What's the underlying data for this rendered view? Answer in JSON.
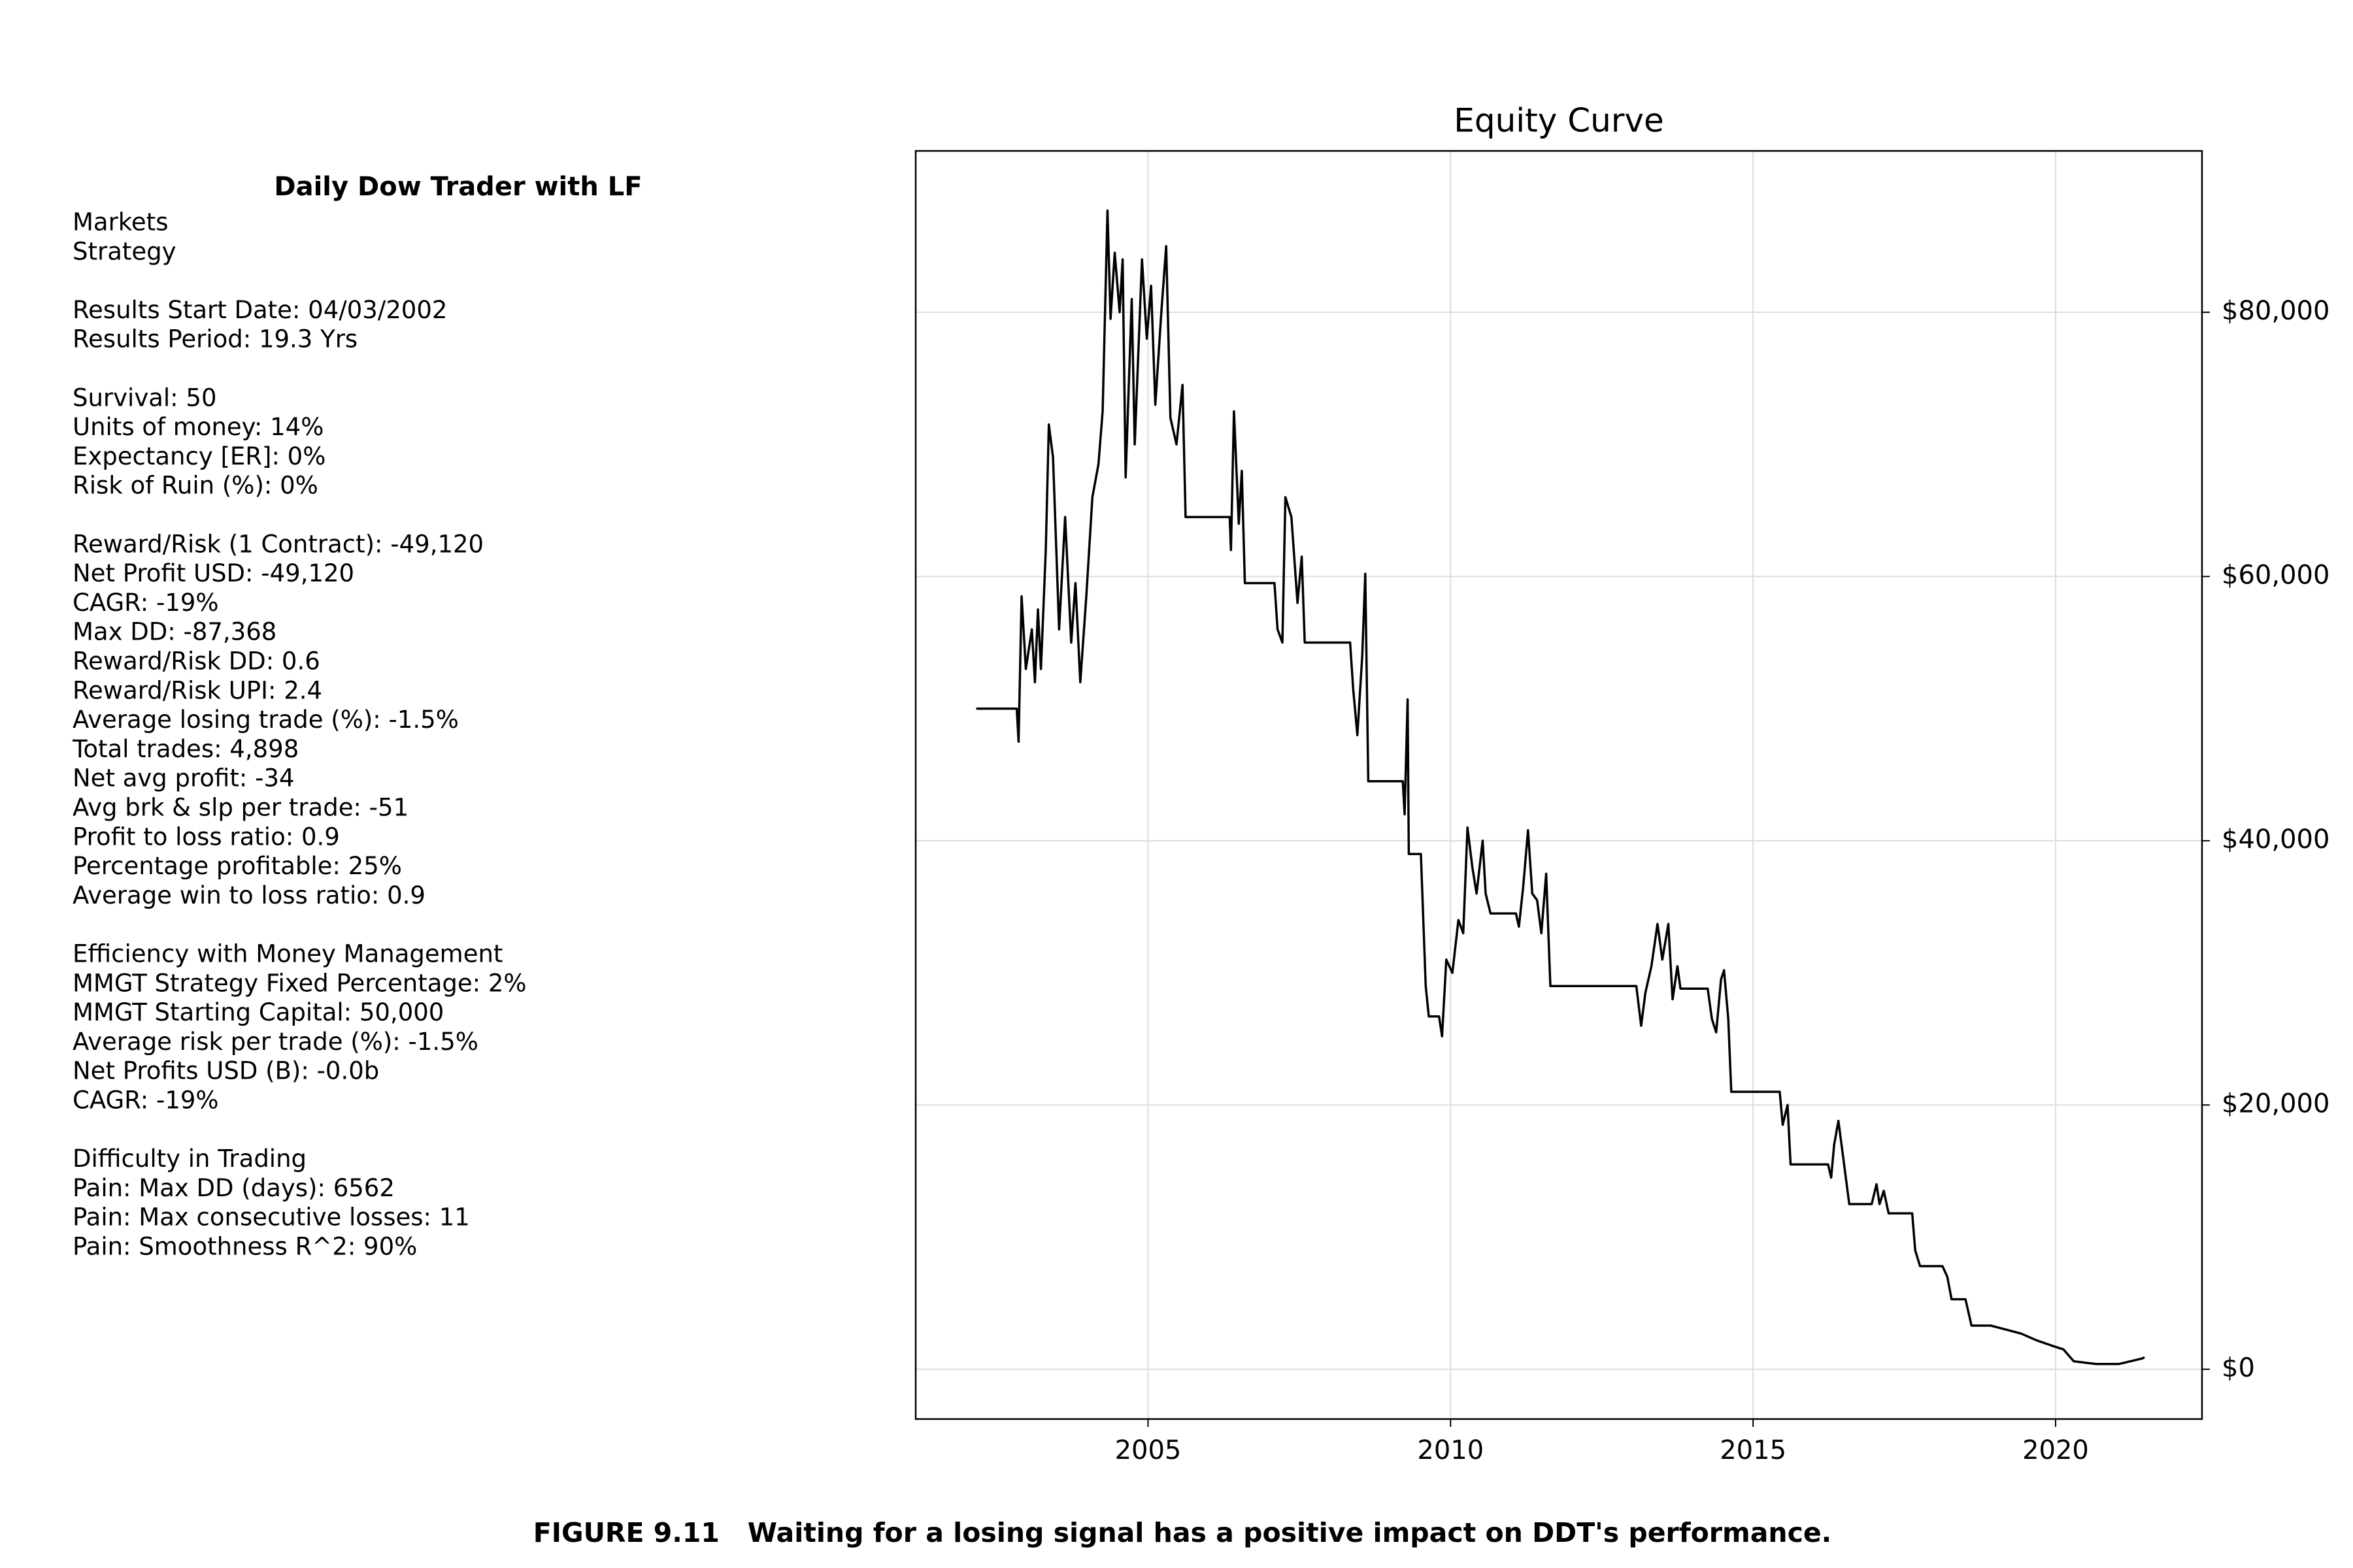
{
  "summary": {
    "title": "Daily Dow Trader with LF",
    "blocks": [
      [
        "Markets",
        "Strategy"
      ],
      [
        "Results Start Date: 04/03/2002",
        "Results Period: 19.3 Yrs"
      ],
      [
        "Survival: 50",
        "Units of money: 14%",
        "Expectancy [ER]: 0%",
        "Risk of Ruin (%): 0%"
      ],
      [
        "Reward/Risk (1 Contract): -49,120",
        "Net Profit USD: -49,120",
        "CAGR: -19%",
        "Max DD: -87,368",
        "Reward/Risk DD: 0.6",
        "Reward/Risk UPI: 2.4",
        "Average losing trade (%): -1.5%",
        "Total trades: 4,898",
        "Net avg profit: -34",
        "Avg brk & slp per trade: -51",
        "Profit to loss ratio: 0.9",
        "Percentage profitable: 25%",
        "Average win to loss ratio: 0.9"
      ],
      [
        "Efficiency with Money Management",
        "MMGT Strategy Fixed Percentage: 2%",
        "MMGT Starting Capital: 50,000",
        "Average risk per trade (%): -1.5%",
        "Net Profits USD (B): -0.0b",
        "CAGR: -19%"
      ],
      [
        "Difficulty in Trading",
        "Pain: Max DD (days): 6562",
        "Pain: Max consecutive losses: 11",
        "Pain: Smoothness R^2: 90%"
      ]
    ]
  },
  "chart_data": {
    "type": "line",
    "title": "Equity Curve",
    "color": "#000000",
    "grid": true,
    "y_axis_side": "right",
    "xlim": [
      2001.16,
      2022.42
    ],
    "xticks": [
      2005,
      2010,
      2015,
      2020
    ],
    "ylim": [
      -3770,
      92210
    ],
    "yticks": [
      {
        "value": 0,
        "label": "$0"
      },
      {
        "value": 20000,
        "label": "$20,000"
      },
      {
        "value": 40000,
        "label": "$40,000"
      },
      {
        "value": 60000,
        "label": "$60,000"
      },
      {
        "value": 80000,
        "label": "$80,000"
      }
    ],
    "x": [
      2002.16,
      2002.83,
      2002.86,
      2002.91,
      2002.98,
      2003.08,
      2003.13,
      2003.18,
      2003.23,
      2003.31,
      2003.36,
      2003.43,
      2003.53,
      2003.63,
      2003.73,
      2003.8,
      2003.88,
      2003.98,
      2004.08,
      2004.18,
      2004.25,
      2004.33,
      2004.38,
      2004.45,
      2004.53,
      2004.58,
      2004.63,
      2004.73,
      2004.78,
      2004.9,
      2004.98,
      2005.05,
      2005.12,
      2005.22,
      2005.3,
      2005.37,
      2005.47,
      2005.57,
      2005.62,
      2006.35,
      2006.37,
      2006.42,
      2006.5,
      2006.55,
      2006.6,
      2007.09,
      2007.14,
      2007.22,
      2007.27,
      2007.37,
      2007.47,
      2007.54,
      2007.59,
      2008.34,
      2008.39,
      2008.46,
      2008.54,
      2008.59,
      2008.64,
      2009.21,
      2009.24,
      2009.29,
      2009.31,
      2009.51,
      2009.59,
      2009.64,
      2009.81,
      2009.86,
      2009.93,
      2010.03,
      2010.13,
      2010.21,
      2010.28,
      2010.36,
      2010.43,
      2010.53,
      2010.58,
      2010.66,
      2011.08,
      2011.13,
      2011.2,
      2011.28,
      2011.35,
      2011.43,
      2011.5,
      2011.58,
      2011.65,
      2013.07,
      2013.15,
      2013.22,
      2013.32,
      2013.42,
      2013.5,
      2013.6,
      2013.67,
      2013.75,
      2013.8,
      2014.25,
      2014.32,
      2014.39,
      2014.47,
      2014.52,
      2014.59,
      2014.64,
      2015.44,
      2015.49,
      2015.57,
      2015.62,
      2016.24,
      2016.29,
      2016.34,
      2016.41,
      2016.49,
      2016.59,
      2016.96,
      2017.04,
      2017.09,
      2017.16,
      2017.24,
      2017.63,
      2017.68,
      2017.76,
      2018.13,
      2018.21,
      2018.28,
      2018.51,
      2018.61,
      2018.93,
      2019.18,
      2019.43,
      2019.68,
      2019.93,
      2020.13,
      2020.3,
      2020.67,
      2021.05,
      2021.42,
      2021.47
    ],
    "values": [
      50000,
      50000,
      47500,
      58500,
      53000,
      56000,
      52000,
      57500,
      53000,
      62000,
      71500,
      69000,
      56000,
      64500,
      55000,
      59500,
      52000,
      58500,
      66000,
      68500,
      72500,
      87700,
      79500,
      84500,
      80000,
      84000,
      67500,
      81000,
      70000,
      84000,
      78000,
      82000,
      73000,
      80000,
      85000,
      72000,
      70000,
      74500,
      64500,
      64500,
      62000,
      72500,
      64000,
      68000,
      59500,
      59500,
      56000,
      55000,
      66000,
      64500,
      58000,
      61500,
      55000,
      55000,
      51500,
      48000,
      54000,
      60200,
      44500,
      44500,
      42000,
      50700,
      39000,
      39000,
      29000,
      26700,
      26700,
      25200,
      31000,
      30000,
      34000,
      33000,
      41000,
      38000,
      36000,
      40000,
      36000,
      34500,
      34500,
      33500,
      36500,
      40800,
      36000,
      35500,
      33000,
      37500,
      29000,
      29000,
      26000,
      28500,
      30500,
      33700,
      31000,
      33700,
      28000,
      30500,
      28800,
      28800,
      26500,
      25500,
      29500,
      30200,
      26500,
      21000,
      21000,
      18500,
      20000,
      15500,
      15500,
      14500,
      17000,
      18800,
      16000,
      12500,
      12500,
      14000,
      12500,
      13500,
      11800,
      11800,
      9000,
      7800,
      7800,
      7000,
      5300,
      5300,
      3300,
      3300,
      3000,
      2700,
      2200,
      1800,
      1500,
      600,
      400,
      400,
      800,
      900
    ]
  },
  "caption": "FIGURE 9.11   Waiting for a losing signal has a positive impact on DDT's performance."
}
